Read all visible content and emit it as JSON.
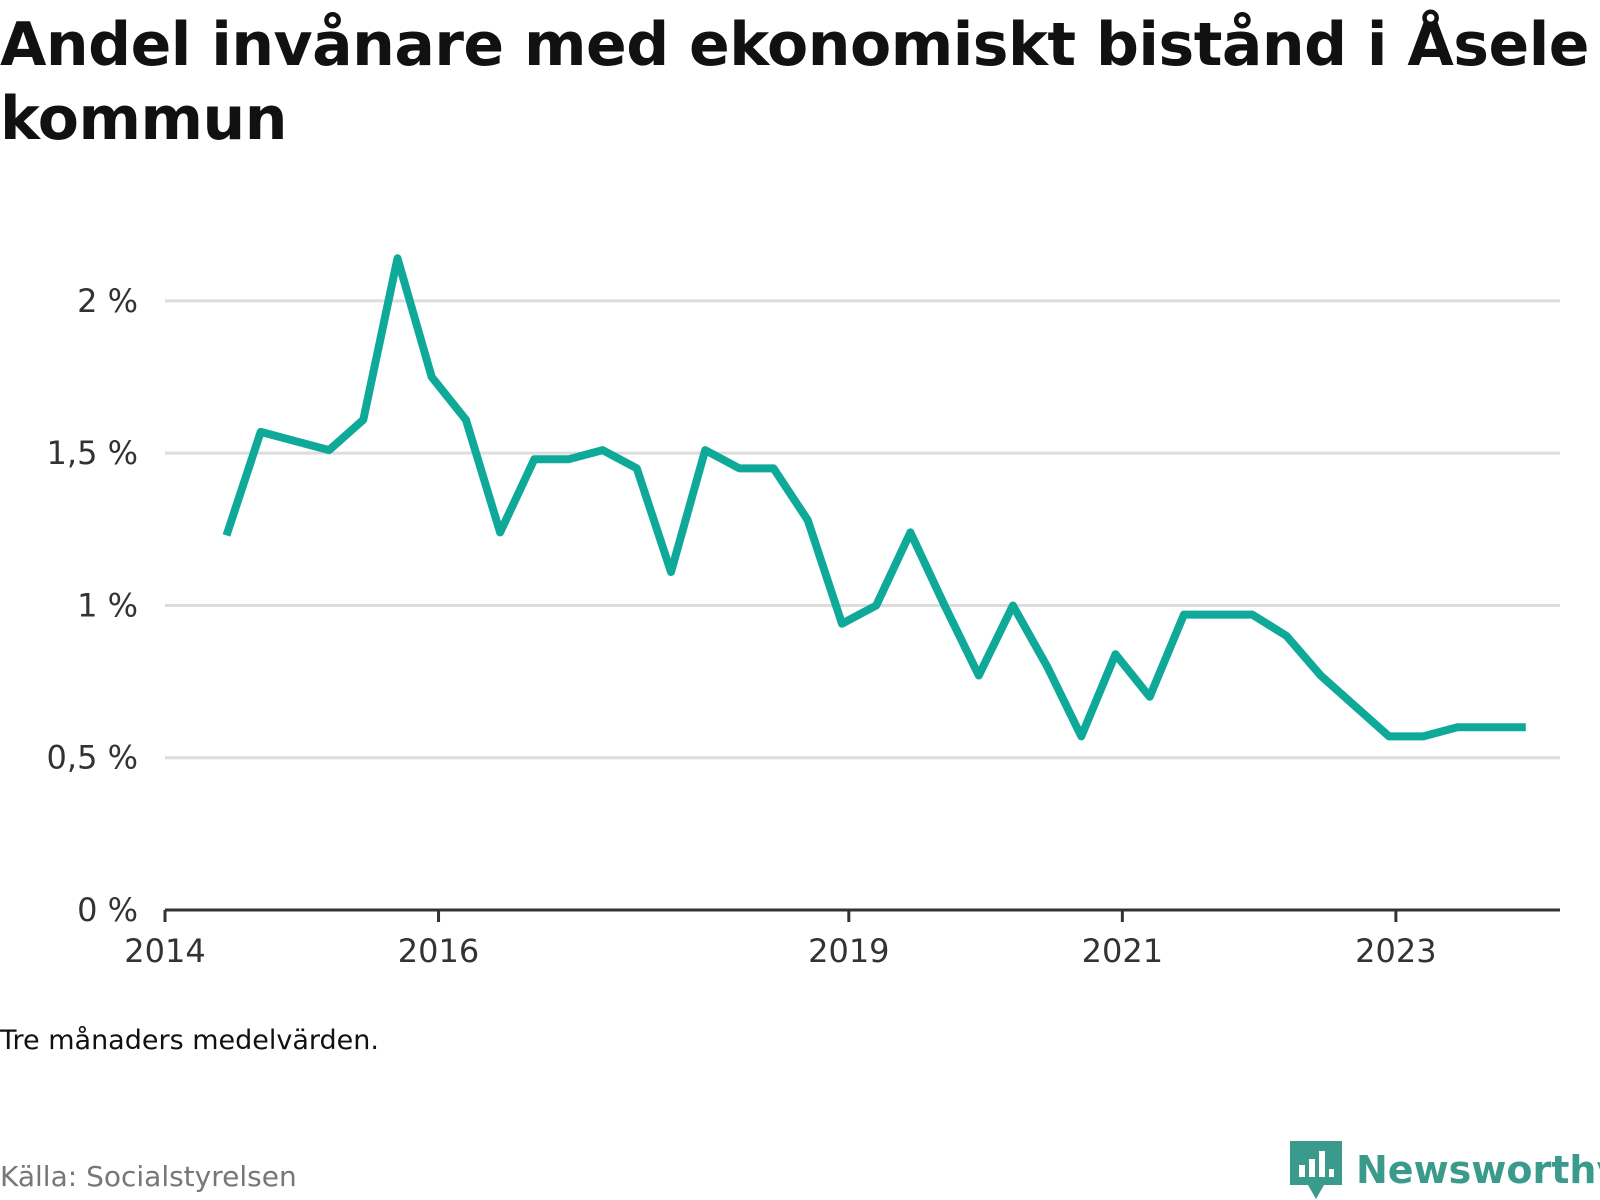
{
  "chart_data": {
    "type": "line",
    "title": "Andel invånare med ekonomiskt bistånd i Åsele kommun",
    "ylabel": "",
    "xlabel": "",
    "ylim": [
      0,
      2.2
    ],
    "xlim": [
      2014.0,
      2024.2
    ],
    "y_ticks": [
      0,
      0.5,
      1,
      1.5,
      2
    ],
    "y_tick_labels": [
      "0 %",
      "0,5 %",
      "1 %",
      "1,5 %",
      "2 %"
    ],
    "x_ticks": [
      2014,
      2016,
      2019,
      2021,
      2023
    ],
    "x_tick_labels": [
      "2014",
      "2016",
      "2019",
      "2021",
      "2023"
    ],
    "grid": true,
    "line_color": "#0fa99a",
    "series": [
      {
        "x": [
          2014.45,
          2014.7,
          2014.95,
          2015.2,
          2015.45,
          2015.7,
          2015.95,
          2016.2,
          2016.45,
          2016.7,
          2016.95,
          2017.2,
          2017.45,
          2017.7,
          2017.95,
          2018.2,
          2018.45,
          2018.7,
          2018.95,
          2019.2,
          2019.45,
          2019.7,
          2019.95,
          2020.2,
          2020.45,
          2020.7,
          2020.95,
          2021.2,
          2021.45,
          2021.7,
          2021.95,
          2022.2,
          2022.45,
          2022.7,
          2022.95,
          2023.2,
          2023.45,
          2023.7,
          2023.95
        ],
        "values": [
          1.23,
          1.57,
          1.54,
          1.51,
          1.61,
          2.14,
          1.75,
          1.61,
          1.24,
          1.48,
          1.48,
          1.51,
          1.45,
          1.11,
          1.51,
          1.45,
          1.45,
          1.28,
          0.94,
          1.0,
          1.24,
          1.0,
          0.77,
          1.0,
          0.8,
          0.57,
          0.84,
          0.7,
          0.97,
          0.97,
          0.97,
          0.9,
          0.77,
          0.67,
          0.57,
          0.57,
          0.6,
          0.6,
          0.6
        ]
      }
    ]
  },
  "note": "Tre månaders medelvärden.",
  "source": "Källa: Socialstyrelsen",
  "brand": {
    "name": "Newsworthy",
    "icon": "newsworthy-logo-icon",
    "color": "#3a9b8d"
  }
}
